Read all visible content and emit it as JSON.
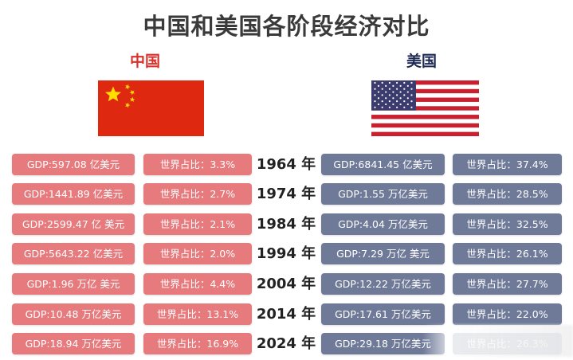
{
  "title": "中国和美国各阶段经济对比",
  "china": {
    "label": "中国"
  },
  "usa": {
    "label": "美国"
  },
  "colors": {
    "china_cell": "#e77a7d",
    "usa_cell": "#6f7a99",
    "title": "#3a3a3a",
    "china_label": "#d9302c",
    "usa_label": "#1f2a55"
  },
  "rows": [
    {
      "year": "1964 年",
      "cn_gdp": "GDP:597.08 亿美元",
      "cn_share": "世界占比：3.3%",
      "us_gdp": "GDP:6841.45 亿美元",
      "us_share": "世界占比：37.4%"
    },
    {
      "year": "1974 年",
      "cn_gdp": "GDP:1441.89 亿美元",
      "cn_share": "世界占比：2.7%",
      "us_gdp": "GDP:1.55 万亿美元",
      "us_share": "世界占比：28.5%"
    },
    {
      "year": "1984 年",
      "cn_gdp": "GDP:2599.47 亿 美元",
      "cn_share": "世界占比：2.1%",
      "us_gdp": "GDP:4.04 万亿美元",
      "us_share": "世界占比：32.5%"
    },
    {
      "year": "1994 年",
      "cn_gdp": "GDP:5643.22 亿美元",
      "cn_share": "世界占比：2.0%",
      "us_gdp": "GDP:7.29 万亿 美元",
      "us_share": "世界占比：26.1%"
    },
    {
      "year": "2004 年",
      "cn_gdp": "GDP:1.96 万亿 美元",
      "cn_share": "世界占比：4.4%",
      "us_gdp": "GDP:12.22 万亿美元",
      "us_share": "世界占比：27.7%"
    },
    {
      "year": "2014 年",
      "cn_gdp": "GDP:10.48 万亿美元",
      "cn_share": "世界占比：13.1%",
      "us_gdp": "GDP:17.61 万亿美元",
      "us_share": "世界占比：22.0%"
    },
    {
      "year": "2024 年",
      "cn_gdp": "GDP:18.94 万亿美元",
      "cn_share": "世界占比：16.9%",
      "us_gdp": "GDP:29.18 万亿美元",
      "us_share": "世界占比：26.3%"
    }
  ]
}
